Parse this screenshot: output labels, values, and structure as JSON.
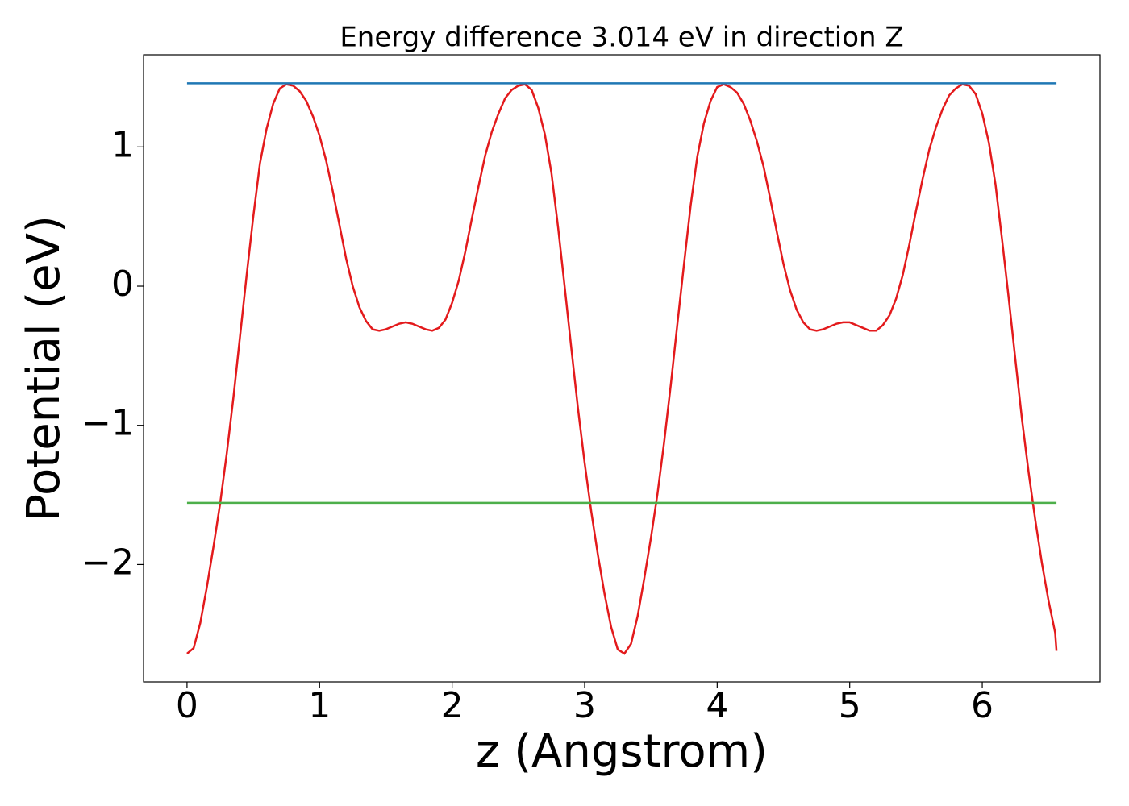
{
  "chart_data": {
    "type": "line",
    "title": "Energy difference 3.014 eV in direction Z",
    "xlabel": "z (Angstrom)",
    "ylabel": "Potential (eV)",
    "xlim": [
      -0.328,
      6.888
    ],
    "ylim": [
      -2.843,
      1.662
    ],
    "xticks": [
      0,
      1,
      2,
      3,
      4,
      5,
      6
    ],
    "yticks": [
      {
        "value": -2,
        "label": "−2"
      },
      {
        "value": -1,
        "label": "−1"
      },
      0,
      1
    ],
    "series": [
      {
        "color": "#e31a1c",
        "x": [
          0,
          0.05,
          0.1,
          0.15,
          0.2,
          0.25,
          0.3,
          0.35,
          0.4,
          0.45,
          0.5,
          0.55,
          0.6,
          0.65,
          0.7,
          0.75,
          0.8,
          0.85,
          0.9,
          0.95,
          1.0,
          1.05,
          1.1,
          1.15,
          1.2,
          1.25,
          1.3,
          1.35,
          1.4,
          1.45,
          1.5,
          1.55,
          1.6,
          1.65,
          1.7,
          1.75,
          1.8,
          1.85,
          1.9,
          1.95,
          2.0,
          2.05,
          2.1,
          2.15,
          2.2,
          2.25,
          2.3,
          2.35,
          2.4,
          2.45,
          2.5,
          2.55,
          2.6,
          2.65,
          2.7,
          2.75,
          2.8,
          2.85,
          2.9,
          2.95,
          3.0,
          3.05,
          3.1,
          3.15,
          3.2,
          3.25,
          3.3,
          3.35,
          3.4,
          3.45,
          3.5,
          3.55,
          3.6,
          3.65,
          3.7,
          3.75,
          3.8,
          3.85,
          3.9,
          3.95,
          4.0,
          4.05,
          4.1,
          4.15,
          4.2,
          4.25,
          4.3,
          4.35,
          4.4,
          4.45,
          4.5,
          4.55,
          4.6,
          4.65,
          4.7,
          4.75,
          4.8,
          4.85,
          4.9,
          4.95,
          5.0,
          5.05,
          5.1,
          5.15,
          5.2,
          5.25,
          5.3,
          5.35,
          5.4,
          5.45,
          5.5,
          5.55,
          5.6,
          5.65,
          5.7,
          5.75,
          5.8,
          5.85,
          5.9,
          5.95,
          6.0,
          6.05,
          6.1,
          6.15,
          6.2,
          6.25,
          6.3,
          6.35,
          6.4,
          6.45,
          6.5,
          6.55,
          6.56
        ],
        "values": [
          -2.64,
          -2.6,
          -2.42,
          -2.16,
          -1.87,
          -1.56,
          -1.2,
          -0.8,
          -0.36,
          0.08,
          0.5,
          0.88,
          1.13,
          1.31,
          1.42,
          1.45,
          1.44,
          1.4,
          1.33,
          1.22,
          1.08,
          0.9,
          0.68,
          0.44,
          0.2,
          0.0,
          -0.15,
          -0.25,
          -0.31,
          -0.32,
          -0.31,
          -0.29,
          -0.27,
          -0.26,
          -0.27,
          -0.29,
          -0.31,
          -0.32,
          -0.3,
          -0.24,
          -0.12,
          0.04,
          0.25,
          0.49,
          0.72,
          0.94,
          1.11,
          1.24,
          1.35,
          1.41,
          1.44,
          1.45,
          1.41,
          1.28,
          1.09,
          0.81,
          0.42,
          -0.01,
          -0.45,
          -0.88,
          -1.27,
          -1.62,
          -1.93,
          -2.21,
          -2.45,
          -2.61,
          -2.64,
          -2.57,
          -2.37,
          -2.1,
          -1.81,
          -1.49,
          -1.12,
          -0.71,
          -0.27,
          0.16,
          0.58,
          0.93,
          1.17,
          1.33,
          1.43,
          1.45,
          1.43,
          1.39,
          1.31,
          1.19,
          1.04,
          0.86,
          0.63,
          0.39,
          0.16,
          -0.03,
          -0.17,
          -0.26,
          -0.31,
          -0.32,
          -0.31,
          -0.29,
          -0.27,
          -0.26,
          -0.26,
          -0.28,
          -0.3,
          -0.32,
          -0.32,
          -0.28,
          -0.21,
          -0.09,
          0.08,
          0.3,
          0.54,
          0.77,
          0.98,
          1.14,
          1.27,
          1.37,
          1.42,
          1.45,
          1.44,
          1.38,
          1.24,
          1.03,
          0.73,
          0.33,
          -0.09,
          -0.53,
          -0.96,
          -1.34,
          -1.68,
          -1.99,
          -2.26,
          -2.49,
          -2.62
        ]
      },
      {
        "color": "#1f77b4",
        "x": [
          0,
          6.56
        ],
        "values": [
          1.457,
          1.457
        ]
      },
      {
        "color": "#4daf4a",
        "x": [
          0,
          6.56
        ],
        "values": [
          -1.557,
          -1.557
        ]
      }
    ]
  }
}
